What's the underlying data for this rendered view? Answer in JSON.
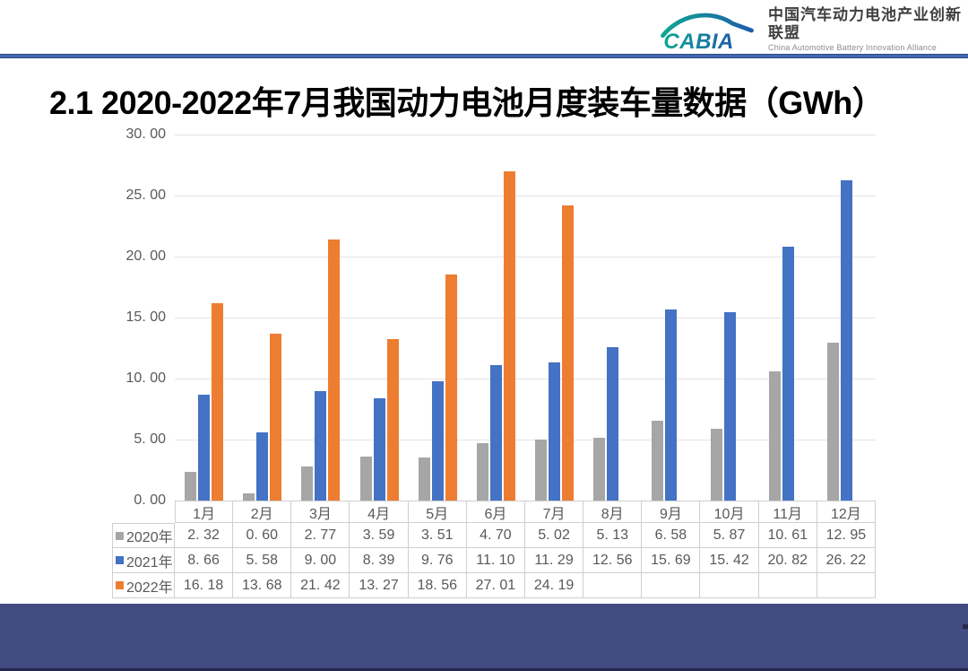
{
  "header": {
    "logo": {
      "brand": "CABIA",
      "org_cn": "中国汽车动力电池产业创新联盟",
      "org_en": "China Automotive Battery Innovation Alliance"
    }
  },
  "title": "2.1 2020-2022年7月我国动力电池月度装车量数据（GWh）",
  "chart_data": {
    "type": "bar",
    "title": "2020-2022年7月我国动力电池月度装车量数据（GWh）",
    "categories": [
      "1月",
      "2月",
      "3月",
      "4月",
      "5月",
      "6月",
      "7月",
      "8月",
      "9月",
      "10月",
      "11月",
      "12月"
    ],
    "series": [
      {
        "name": "2020年",
        "color": "#a6a6a6",
        "values": [
          2.32,
          0.6,
          2.77,
          3.59,
          3.51,
          4.7,
          5.02,
          5.13,
          6.58,
          5.87,
          10.61,
          12.95
        ]
      },
      {
        "name": "2021年",
        "color": "#4472c4",
        "values": [
          8.66,
          5.58,
          9.0,
          8.39,
          9.76,
          11.1,
          11.29,
          12.56,
          15.69,
          15.42,
          20.82,
          26.22
        ]
      },
      {
        "name": "2022年",
        "color": "#ed7d31",
        "values": [
          16.18,
          13.68,
          21.42,
          13.27,
          18.56,
          27.01,
          24.19,
          null,
          null,
          null,
          null,
          null
        ]
      }
    ],
    "xlabel": "",
    "ylabel": "",
    "ylim": [
      0,
      30
    ],
    "ytick_step": 5,
    "grid": true,
    "legend_position": "table-row-headers"
  },
  "colors": {
    "top_rule": "#4468b1",
    "footer_band": "#424c80",
    "grid_line": "#e4e4e4",
    "table_border": "#cfcfcf",
    "secondary_text": "#595959",
    "logo_gradient_start": "#11a693",
    "logo_gradient_end": "#1d5dab"
  }
}
